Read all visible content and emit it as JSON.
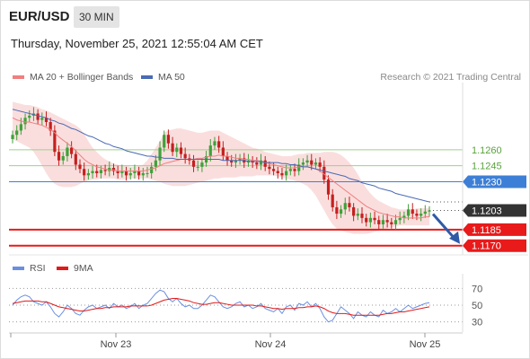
{
  "header": {
    "symbol": "EUR/USD",
    "timeframe": "30 MIN",
    "datetime": "Thursday, November 25, 2021 12:55:04 AM CET"
  },
  "legend": {
    "ma_bollinger": "MA 20 + Bollinger Bands",
    "ma50": "MA 50",
    "copyright": "Research © 2021 Trading Central"
  },
  "rsi_legend": {
    "rsi": "RSI",
    "ma9": "9MA"
  },
  "colors": {
    "bollinger": "#f6c8c8",
    "ma20": "#f07f7f",
    "ma50": "#4a6ab4",
    "candle_up": "#3fa13a",
    "candle_down": "#c51f1f",
    "resistance": "#9ed08a",
    "pivot": "#3d7fd6",
    "support": "#e81a1a",
    "current": "#333333",
    "arrow": "#2e5aa7",
    "rsi": "#6a8fe0",
    "rsi_ma": "#e01a1a"
  },
  "chart_data": [
    {
      "type": "candlestick",
      "ylim": [
        1.1163,
        1.1318
      ],
      "x_ticks": [
        "Nov 23",
        "Nov 24",
        "Nov 25"
      ],
      "levels": [
        {
          "value": 1.126,
          "label": "1.1260",
          "kind": "resistance"
        },
        {
          "value": 1.1245,
          "label": "1.1245",
          "kind": "resistance"
        },
        {
          "value": 1.123,
          "label": "1.1230",
          "kind": "pivot"
        },
        {
          "value": 1.1203,
          "label": "1.1203",
          "kind": "current"
        },
        {
          "value": 1.1185,
          "label": "1.1185",
          "kind": "support"
        },
        {
          "value": 1.117,
          "label": "1.1170",
          "kind": "support"
        }
      ],
      "close": [
        1.1274,
        1.1278,
        1.1284,
        1.129,
        1.1292,
        1.1294,
        1.1288,
        1.129,
        1.1286,
        1.1278,
        1.1258,
        1.125,
        1.1254,
        1.1262,
        1.1256,
        1.1246,
        1.1242,
        1.1236,
        1.1238,
        1.124,
        1.1238,
        1.1241,
        1.124,
        1.1243,
        1.124,
        1.1238,
        1.124,
        1.1236,
        1.1238,
        1.124,
        1.1236,
        1.1238,
        1.1238,
        1.1244,
        1.125,
        1.1262,
        1.1274,
        1.1266,
        1.1258,
        1.1262,
        1.1256,
        1.1252,
        1.125,
        1.1244,
        1.1244,
        1.1248,
        1.1254,
        1.1264,
        1.1268,
        1.1262,
        1.1254,
        1.125,
        1.1248,
        1.125,
        1.1252,
        1.1248,
        1.125,
        1.1248,
        1.1246,
        1.125,
        1.1244,
        1.1242,
        1.124,
        1.1238,
        1.1236,
        1.124,
        1.1242,
        1.124,
        1.1246,
        1.1248,
        1.125,
        1.1246,
        1.1248,
        1.1244,
        1.1232,
        1.1218,
        1.1206,
        1.12,
        1.1204,
        1.121,
        1.1206,
        1.1198,
        1.12,
        1.1196,
        1.1192,
        1.1196,
        1.1194,
        1.119,
        1.1194,
        1.1192,
        1.119,
        1.1194,
        1.1196,
        1.1198,
        1.1204,
        1.12,
        1.1198,
        1.12,
        1.1202,
        1.1203
      ],
      "ma20": [
        1.129,
        1.1288,
        1.1287,
        1.1286,
        1.1286,
        1.1285,
        1.1284,
        1.1283,
        1.1281,
        1.1279,
        1.1276,
        1.1272,
        1.1269,
        1.1266,
        1.1263,
        1.1259,
        1.1255,
        1.1251,
        1.1248,
        1.1246,
        1.1244,
        1.1243,
        1.1242,
        1.1241,
        1.1241,
        1.124,
        1.124,
        1.124,
        1.124,
        1.124,
        1.124,
        1.124,
        1.1241,
        1.1242,
        1.1243,
        1.1245,
        1.1247,
        1.1248,
        1.1249,
        1.125,
        1.1251,
        1.1251,
        1.1251,
        1.1251,
        1.1252,
        1.1252,
        1.1253,
        1.1254,
        1.1254,
        1.1255,
        1.1254,
        1.1254,
        1.1253,
        1.1252,
        1.1252,
        1.1251,
        1.1251,
        1.125,
        1.125,
        1.1249,
        1.1248,
        1.1247,
        1.1246,
        1.1245,
        1.1244,
        1.1243,
        1.1243,
        1.1243,
        1.1244,
        1.1244,
        1.1244,
        1.1243,
        1.1242,
        1.124,
        1.1237,
        1.1234,
        1.1231,
        1.1228,
        1.1225,
        1.1222,
        1.1219,
        1.1216,
        1.1213,
        1.121,
        1.1207,
        1.1205,
        1.1203,
        1.1201,
        1.12,
        1.1199,
        1.1198,
        1.1197,
        1.1197,
        1.1196,
        1.1196,
        1.1196,
        1.1196,
        1.1196,
        1.1197,
        1.1197
      ],
      "upper_band": [
        1.1305,
        1.1304,
        1.1303,
        1.1302,
        1.1302,
        1.1301,
        1.13,
        1.1298,
        1.1297,
        1.1295,
        1.1293,
        1.1291,
        1.1289,
        1.1287,
        1.1285,
        1.1283,
        1.128,
        1.1275,
        1.1268,
        1.1262,
        1.1258,
        1.1254,
        1.1251,
        1.1249,
        1.1247,
        1.1246,
        1.1245,
        1.1245,
        1.1244,
        1.1244,
        1.1245,
        1.1246,
        1.125,
        1.1256,
        1.1262,
        1.1268,
        1.1276,
        1.1278,
        1.1279,
        1.128,
        1.128,
        1.1279,
        1.1278,
        1.1277,
        1.1276,
        1.1276,
        1.1277,
        1.1278,
        1.1278,
        1.1278,
        1.1276,
        1.1274,
        1.1272,
        1.127,
        1.1268,
        1.1266,
        1.1264,
        1.1262,
        1.1261,
        1.126,
        1.1258,
        1.1257,
        1.1256,
        1.1255,
        1.1254,
        1.1254,
        1.1254,
        1.1255,
        1.1256,
        1.1256,
        1.1257,
        1.1257,
        1.1257,
        1.1257,
        1.1258,
        1.1258,
        1.1258,
        1.1257,
        1.1255,
        1.1252,
        1.1248,
        1.1243,
        1.1237,
        1.123,
        1.1224,
        1.1219,
        1.1215,
        1.1212,
        1.121,
        1.1208,
        1.1206,
        1.1205,
        1.1204,
        1.1204,
        1.1204,
        1.1204,
        1.1205,
        1.1205,
        1.1205,
        1.1205
      ],
      "lower_band": [
        1.127,
        1.1268,
        1.1266,
        1.1264,
        1.1262,
        1.1258,
        1.1252,
        1.1245,
        1.1238,
        1.1232,
        1.1228,
        1.1226,
        1.1225,
        1.1225,
        1.1225,
        1.1226,
        1.1228,
        1.123,
        1.1231,
        1.1232,
        1.1232,
        1.1233,
        1.1233,
        1.1233,
        1.1233,
        1.1232,
        1.1232,
        1.1232,
        1.1233,
        1.1233,
        1.1233,
        1.1233,
        1.1233,
        1.1232,
        1.1231,
        1.123,
        1.1228,
        1.1227,
        1.1226,
        1.1226,
        1.1226,
        1.1226,
        1.1227,
        1.1228,
        1.1229,
        1.123,
        1.1231,
        1.1232,
        1.1233,
        1.1233,
        1.1234,
        1.1234,
        1.1234,
        1.1234,
        1.1235,
        1.1235,
        1.1235,
        1.1235,
        1.1236,
        1.1236,
        1.1236,
        1.1236,
        1.1236,
        1.1235,
        1.1234,
        1.1233,
        1.1232,
        1.1231,
        1.123,
        1.1228,
        1.1226,
        1.1222,
        1.1217,
        1.121,
        1.1203,
        1.1196,
        1.119,
        1.1186,
        1.1184,
        1.1183,
        1.1182,
        1.1181,
        1.1181,
        1.1181,
        1.1181,
        1.1182,
        1.1183,
        1.1184,
        1.1185,
        1.1186,
        1.1187,
        1.1188,
        1.1189,
        1.1189,
        1.1189,
        1.1189,
        1.1189,
        1.1189,
        1.1189,
        1.1189
      ],
      "ma50": [
        1.1298,
        1.1297,
        1.1296,
        1.1295,
        1.1294,
        1.1293,
        1.1292,
        1.1291,
        1.129,
        1.1288,
        1.1287,
        1.1285,
        1.1284,
        1.1282,
        1.128,
        1.1279,
        1.1277,
        1.1275,
        1.1273,
        1.1272,
        1.127,
        1.1268,
        1.1266,
        1.1265,
        1.1263,
        1.1262,
        1.1261,
        1.1259,
        1.1258,
        1.1257,
        1.1256,
        1.1255,
        1.1254,
        1.1254,
        1.1253,
        1.1253,
        1.1252,
        1.1252,
        1.1252,
        1.1251,
        1.1251,
        1.1251,
        1.1251,
        1.1251,
        1.1251,
        1.1251,
        1.1251,
        1.1251,
        1.1251,
        1.1251,
        1.125,
        1.125,
        1.125,
        1.125,
        1.125,
        1.125,
        1.1249,
        1.1249,
        1.1249,
        1.1249,
        1.1248,
        1.1248,
        1.1248,
        1.1248,
        1.1247,
        1.1247,
        1.1246,
        1.1246,
        1.1245,
        1.1244,
        1.1244,
        1.1243,
        1.1242,
        1.1241,
        1.124,
        1.1239,
        1.1238,
        1.1237,
        1.1236,
        1.1235,
        1.1233,
        1.1232,
        1.1231,
        1.1229,
        1.1228,
        1.1227,
        1.1226,
        1.1224,
        1.1223,
        1.1222,
        1.1221,
        1.1219,
        1.1218,
        1.1217,
        1.1216,
        1.1215,
        1.1214,
        1.1213,
        1.1212,
        1.1211
      ]
    },
    {
      "type": "line",
      "ylim": [
        20,
        80
      ],
      "y_ticks": [
        70,
        50,
        30
      ],
      "rsi": [
        50,
        56,
        60,
        62,
        60,
        54,
        52,
        50,
        54,
        48,
        40,
        36,
        42,
        50,
        46,
        40,
        38,
        44,
        48,
        50,
        46,
        48,
        50,
        46,
        52,
        48,
        50,
        46,
        48,
        52,
        46,
        50,
        52,
        58,
        64,
        68,
        66,
        58,
        54,
        58,
        52,
        48,
        50,
        46,
        46,
        50,
        56,
        62,
        60,
        54,
        48,
        46,
        48,
        52,
        54,
        48,
        50,
        46,
        48,
        52,
        46,
        44,
        42,
        46,
        40,
        48,
        50,
        44,
        52,
        50,
        54,
        48,
        52,
        46,
        36,
        30,
        32,
        40,
        48,
        44,
        40,
        34,
        42,
        38,
        36,
        42,
        38,
        36,
        44,
        40,
        42,
        46,
        42,
        46,
        50,
        46,
        48,
        50,
        52,
        53
      ],
      "ma9": [
        52,
        53,
        54,
        55,
        55,
        55,
        55,
        54,
        54,
        52,
        50,
        48,
        47,
        46,
        45,
        44,
        43,
        43,
        44,
        45,
        46,
        46,
        47,
        47,
        48,
        48,
        48,
        48,
        49,
        49,
        49,
        49,
        49,
        50,
        52,
        54,
        56,
        57,
        58,
        58,
        57,
        56,
        55,
        53,
        52,
        51,
        51,
        52,
        53,
        53,
        52,
        51,
        50,
        50,
        50,
        50,
        50,
        50,
        49,
        49,
        48,
        47,
        46,
        46,
        45,
        46,
        46,
        46,
        47,
        47,
        48,
        48,
        49,
        48,
        46,
        43,
        41,
        40,
        40,
        40,
        39,
        38,
        38,
        38,
        38,
        38,
        38,
        38,
        39,
        40,
        40,
        41,
        42,
        42,
        43,
        44,
        45,
        46,
        47,
        48
      ]
    }
  ]
}
